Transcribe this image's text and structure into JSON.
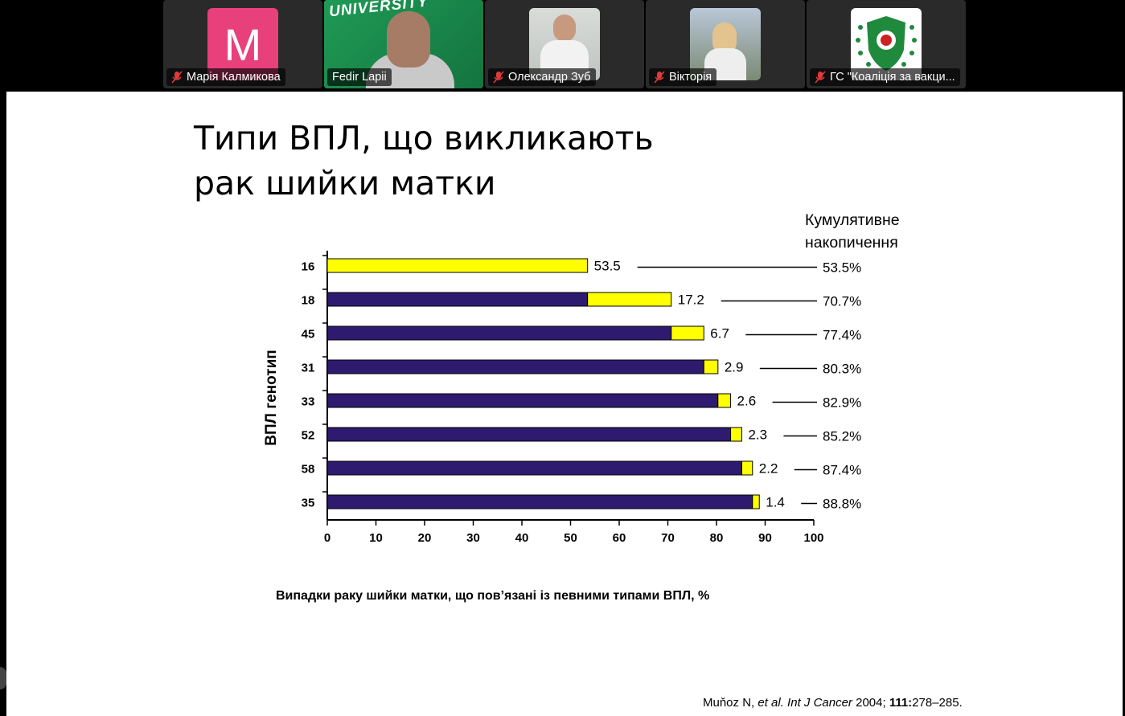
{
  "participants": [
    {
      "name": "Марія Калмикова",
      "avatar_letter": "M",
      "muted": true,
      "active": false
    },
    {
      "name": "Fedir Lapii",
      "muted": false,
      "active": true,
      "banner_text": "UNIVERSITY"
    },
    {
      "name": "Олександр Зуб",
      "muted": true,
      "active": false
    },
    {
      "name": "Вікторія",
      "muted": true,
      "active": false
    },
    {
      "name": "ГС \"Коаліція за вакци...",
      "muted": true,
      "active": false
    }
  ],
  "slide": {
    "title": "Типи ВПЛ, що викликають\nрак шийки матки",
    "cumulative_header": "Кумулятивне\nнакопичення",
    "reference": {
      "author": "Muňoz N, ",
      "etal": "et al.",
      "journal": " Int J Cancer",
      "year": " 2004; ",
      "volume": "111:",
      "pages": "278–285."
    }
  },
  "chart_data": {
    "type": "bar",
    "orientation": "horizontal",
    "stacked": true,
    "title": "",
    "ylabel": "ВПЛ генотип",
    "xlabel": "Випадки раку шийки матки, що пов’язані із певними типами ВПЛ, %",
    "xlim": [
      0,
      100
    ],
    "xticks": [
      0,
      10,
      20,
      30,
      40,
      50,
      60,
      70,
      80,
      90,
      100
    ],
    "categories": [
      "16",
      "18",
      "45",
      "31",
      "33",
      "52",
      "58",
      "35"
    ],
    "series": [
      {
        "values": [
          0,
          53.5,
          70.7,
          77.4,
          80.3,
          82.9,
          85.2,
          87.4
        ],
        "color": "#2e1a6e"
      },
      {
        "values": [
          53.5,
          17.2,
          6.7,
          2.9,
          2.6,
          2.3,
          2.2,
          1.4
        ],
        "color": "#ffff00"
      }
    ],
    "data_labels": [
      "53.5",
      "17.2",
      "6.7",
      "2.9",
      "2.6",
      "2.3",
      "2.2",
      "1.4"
    ],
    "cumulative_labels": [
      "53.5%",
      "70.7%",
      "77.4%",
      "80.3%",
      "82.9%",
      "85.2%",
      "87.4%",
      "88.8%"
    ]
  },
  "colors": {
    "active_speaker": "#23d160",
    "pink_avatar": "#e8407a"
  }
}
